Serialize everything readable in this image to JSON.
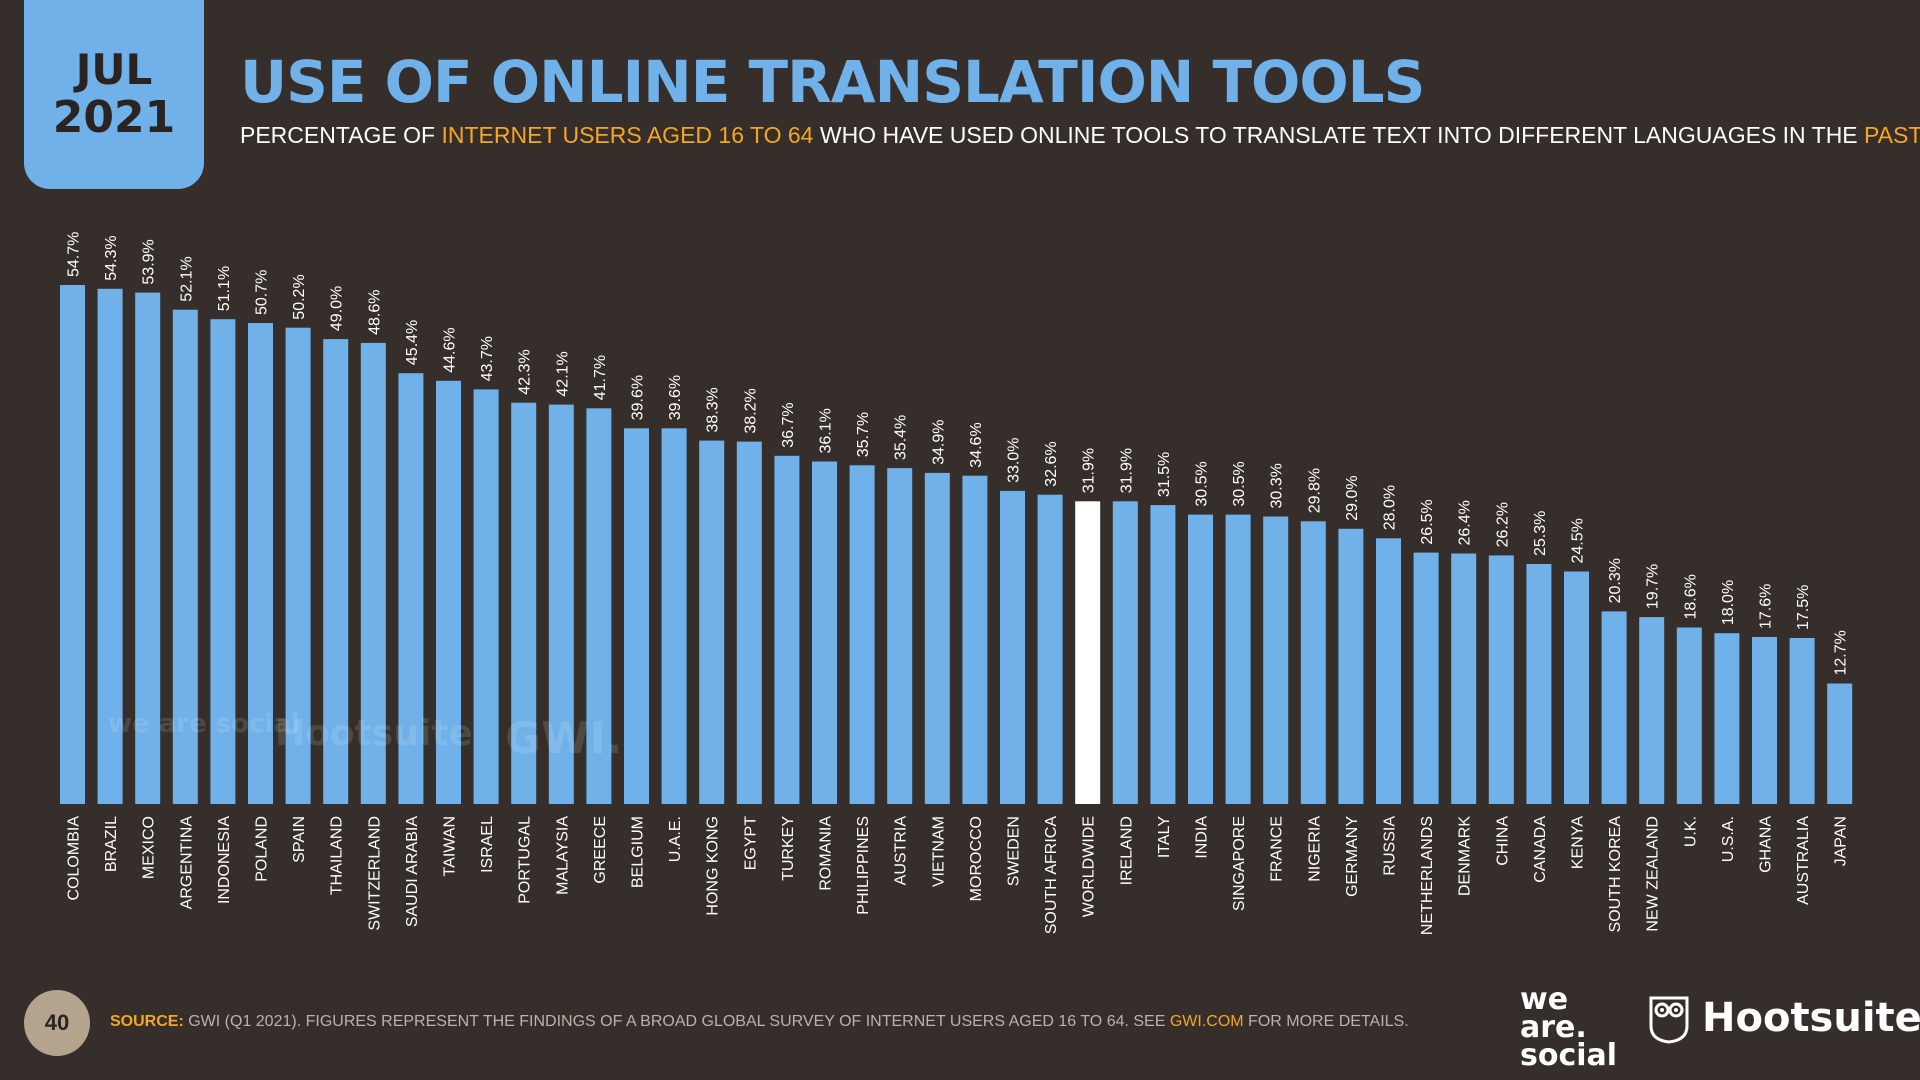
{
  "header": {
    "month": "JUL",
    "year": "2021",
    "title": "USE OF ONLINE TRANSLATION TOOLS",
    "subtitle": {
      "p1": "PERCENTAGE OF ",
      "h1": "INTERNET USERS AGED 16 TO 64",
      "p2": " WHO HAVE USED ONLINE TOOLS TO TRANSLATE TEXT INTO DIFFERENT LANGUAGES IN THE ",
      "h2": "PAST WEEK"
    }
  },
  "colors": {
    "background": "#352e2b",
    "bar": "#6fb1e8",
    "highlight_bar": "#ffffff",
    "accent": "#f5a623",
    "badge": "#6fb1e8"
  },
  "watermarks": {
    "brand1": "we are social",
    "brand2": "Hootsuite",
    "brand3": "GWI."
  },
  "chart_data": {
    "type": "bar",
    "categories": [
      "COLOMBIA",
      "BRAZIL",
      "MEXICO",
      "ARGENTINA",
      "INDONESIA",
      "POLAND",
      "SPAIN",
      "THAILAND",
      "SWITZERLAND",
      "SAUDI ARABIA",
      "TAIWAN",
      "ISRAEL",
      "PORTUGAL",
      "MALAYSIA",
      "GREECE",
      "BELGIUM",
      "U.A.E.",
      "HONG KONG",
      "EGYPT",
      "TURKEY",
      "ROMANIA",
      "PHILIPPINES",
      "AUSTRIA",
      "VIETNAM",
      "MOROCCO",
      "SWEDEN",
      "SOUTH AFRICA",
      "WORLDWIDE",
      "IRELAND",
      "ITALY",
      "INDIA",
      "SINGAPORE",
      "FRANCE",
      "NIGERIA",
      "GERMANY",
      "RUSSIA",
      "NETHERLANDS",
      "DENMARK",
      "CHINA",
      "CANADA",
      "KENYA",
      "SOUTH KOREA",
      "NEW ZEALAND",
      "U.K.",
      "U.S.A.",
      "GHANA",
      "AUSTRALIA",
      "JAPAN"
    ],
    "values": [
      54.7,
      54.3,
      53.9,
      52.1,
      51.1,
      50.7,
      50.2,
      49.0,
      48.6,
      45.4,
      44.6,
      43.7,
      42.3,
      42.1,
      41.7,
      39.6,
      39.6,
      38.3,
      38.2,
      36.7,
      36.1,
      35.7,
      35.4,
      34.9,
      34.6,
      33.0,
      32.6,
      31.9,
      31.9,
      31.5,
      30.5,
      30.5,
      30.3,
      29.8,
      29.0,
      28.0,
      26.5,
      26.4,
      26.2,
      25.3,
      24.5,
      20.3,
      19.7,
      18.6,
      18.0,
      17.6,
      17.5,
      12.7
    ],
    "labels": [
      "54.7%",
      "54.3%",
      "53.9%",
      "52.1%",
      "51.1%",
      "50.7%",
      "50.2%",
      "49.0%",
      "48.6%",
      "45.4%",
      "44.6%",
      "43.7%",
      "42.3%",
      "42.1%",
      "41.7%",
      "39.6%",
      "39.6%",
      "38.3%",
      "38.2%",
      "36.7%",
      "36.1%",
      "35.7%",
      "35.4%",
      "34.9%",
      "34.6%",
      "33.0%",
      "32.6%",
      "31.9%",
      "31.9%",
      "31.5%",
      "30.5%",
      "30.5%",
      "30.3%",
      "29.8%",
      "29.0%",
      "28.0%",
      "26.5%",
      "26.4%",
      "26.2%",
      "25.3%",
      "24.5%",
      "20.3%",
      "19.7%",
      "18.6%",
      "18.0%",
      "17.6%",
      "17.5%",
      "12.7%"
    ],
    "highlight": "WORLDWIDE",
    "ylim": [
      0,
      54.7
    ],
    "grid": false,
    "legend": "none"
  },
  "footer": {
    "page": "40",
    "source_label": "SOURCE:",
    "source_text": " GWI (Q1 2021). FIGURES REPRESENT THE FINDINGS OF A BROAD GLOBAL SURVEY OF INTERNET USERS AGED 16 TO 64. SEE ",
    "source_link": "GWI.COM",
    "source_end": " FOR MORE DETAILS."
  },
  "logos": {
    "we": "we",
    "are": "are.",
    "social": "social",
    "hootsuite": "Hootsuite"
  }
}
